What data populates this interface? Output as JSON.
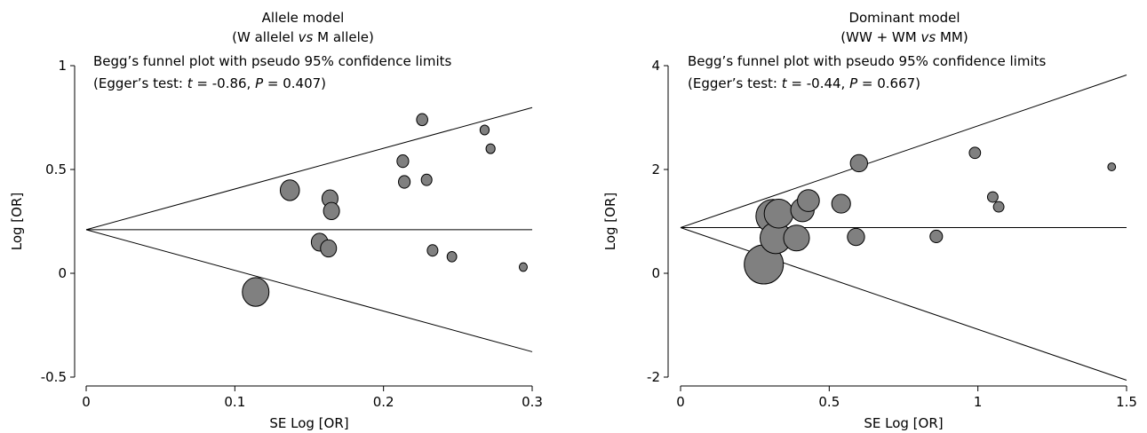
{
  "chart_data": [
    {
      "type": "scatter",
      "title": "Allele model",
      "subtitle_parts": [
        "(W allelel ",
        "vs",
        " M allele)"
      ],
      "annotation_line1": "Begg’s funnel plot with pseudo 95% confidence limits",
      "annotation_line2_parts": [
        "(Egger’s test: ",
        "t",
        " = -0.86, ",
        "P",
        " = 0.407)"
      ],
      "xlabel": "SE Log [OR]",
      "ylabel": "Log [OR]",
      "xlim": [
        0,
        0.3
      ],
      "ylim": [
        -0.5,
        1
      ],
      "xticks": [
        "0",
        "0.1",
        "0.2",
        "0.3"
      ],
      "yticks": [
        "-0.5",
        "0",
        "0.5",
        "1"
      ],
      "pooled": 0.21,
      "bubble_color": "#808080",
      "points": [
        {
          "x": 0.114,
          "y": -0.09,
          "size": 1.0
        },
        {
          "x": 0.137,
          "y": 0.4,
          "size": 0.72
        },
        {
          "x": 0.157,
          "y": 0.15,
          "size": 0.62
        },
        {
          "x": 0.163,
          "y": 0.12,
          "size": 0.6
        },
        {
          "x": 0.164,
          "y": 0.36,
          "size": 0.6
        },
        {
          "x": 0.165,
          "y": 0.3,
          "size": 0.6
        },
        {
          "x": 0.213,
          "y": 0.54,
          "size": 0.44
        },
        {
          "x": 0.214,
          "y": 0.44,
          "size": 0.44
        },
        {
          "x": 0.226,
          "y": 0.74,
          "size": 0.42
        },
        {
          "x": 0.229,
          "y": 0.45,
          "size": 0.4
        },
        {
          "x": 0.233,
          "y": 0.11,
          "size": 0.4
        },
        {
          "x": 0.246,
          "y": 0.08,
          "size": 0.36
        },
        {
          "x": 0.268,
          "y": 0.69,
          "size": 0.34
        },
        {
          "x": 0.272,
          "y": 0.6,
          "size": 0.34
        },
        {
          "x": 0.294,
          "y": 0.03,
          "size": 0.3
        }
      ]
    },
    {
      "type": "scatter",
      "title": "Dominant model",
      "subtitle_parts": [
        "(WW + WM ",
        "vs",
        " MM)"
      ],
      "annotation_line1": "Begg’s funnel plot with pseudo 95% confidence limits",
      "annotation_line2_parts": [
        "(Egger’s test: ",
        "t",
        " = -0.44, ",
        "P",
        " = 0.667)"
      ],
      "xlabel": "SE Log [OR]",
      "ylabel": "Log [OR]",
      "xlim": [
        0,
        1.5
      ],
      "ylim": [
        -2,
        4
      ],
      "xticks": [
        "0",
        "0.5",
        "1",
        "1.5"
      ],
      "yticks": [
        "-2",
        "0",
        "2",
        "4"
      ],
      "pooled": 0.88,
      "bubble_color": "#808080",
      "points": [
        {
          "x": 0.28,
          "y": 0.17,
          "size": 1.0
        },
        {
          "x": 0.31,
          "y": 1.1,
          "size": 0.86
        },
        {
          "x": 0.32,
          "y": 0.68,
          "size": 0.8
        },
        {
          "x": 0.33,
          "y": 1.15,
          "size": 0.74
        },
        {
          "x": 0.39,
          "y": 0.68,
          "size": 0.66
        },
        {
          "x": 0.41,
          "y": 1.22,
          "size": 0.6
        },
        {
          "x": 0.43,
          "y": 1.4,
          "size": 0.56
        },
        {
          "x": 0.54,
          "y": 1.34,
          "size": 0.48
        },
        {
          "x": 0.59,
          "y": 0.7,
          "size": 0.44
        },
        {
          "x": 0.6,
          "y": 2.12,
          "size": 0.44
        },
        {
          "x": 0.86,
          "y": 0.71,
          "size": 0.32
        },
        {
          "x": 0.99,
          "y": 2.32,
          "size": 0.29
        },
        {
          "x": 1.05,
          "y": 1.47,
          "size": 0.27
        },
        {
          "x": 1.07,
          "y": 1.28,
          "size": 0.27
        },
        {
          "x": 1.45,
          "y": 2.05,
          "size": 0.2
        }
      ]
    }
  ]
}
